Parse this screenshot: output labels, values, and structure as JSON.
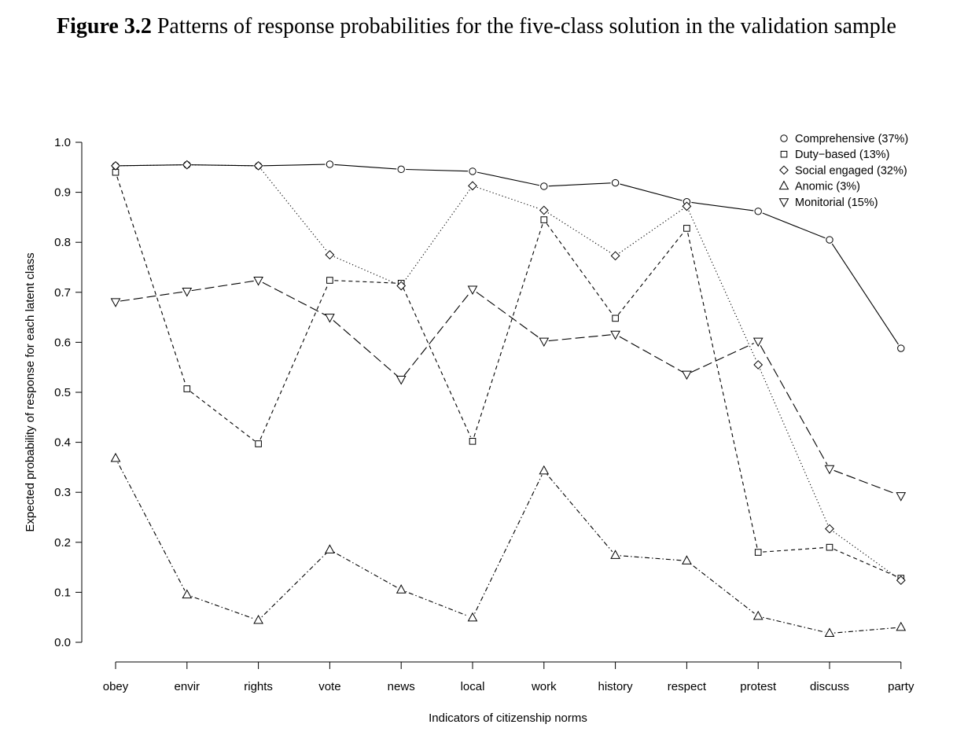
{
  "figure": {
    "number": "Figure 3.2",
    "caption": "Patterns of response probabilities for the five-class solution in the validation sample"
  },
  "chart_data": {
    "type": "line",
    "xlabel": "Indicators of citizenship norms",
    "ylabel": "Expected probability of response for each latent class",
    "ylim": [
      0.0,
      1.0
    ],
    "yticks": [
      "0.0",
      "0.1",
      "0.2",
      "0.3",
      "0.4",
      "0.5",
      "0.6",
      "0.7",
      "0.8",
      "0.9",
      "1.0"
    ],
    "categories": [
      "obey",
      "envir",
      "rights",
      "vote",
      "news",
      "local",
      "work",
      "history",
      "respect",
      "protest",
      "discuss",
      "party"
    ],
    "grid": false,
    "legend_position": "top-right",
    "series": [
      {
        "name": "Comprehensive (37%)",
        "marker": "circle",
        "dash": "solid",
        "values": [
          0.953,
          0.955,
          0.953,
          0.956,
          0.946,
          0.942,
          0.912,
          0.919,
          0.881,
          0.862,
          0.805,
          0.588
        ]
      },
      {
        "name": "Duty−based (13%)",
        "marker": "square",
        "dash": "dashed",
        "values": [
          0.94,
          0.507,
          0.397,
          0.724,
          0.718,
          0.402,
          0.845,
          0.648,
          0.828,
          0.18,
          0.19,
          0.128
        ]
      },
      {
        "name": "Social engaged (32%)",
        "marker": "diamond",
        "dash": "dotted",
        "values": [
          0.953,
          0.955,
          0.953,
          0.775,
          0.713,
          0.913,
          0.864,
          0.773,
          0.872,
          0.555,
          0.227,
          0.124
        ]
      },
      {
        "name": "Anomic (3%)",
        "marker": "triangle-up",
        "dash": "dashdot",
        "values": [
          0.368,
          0.095,
          0.044,
          0.185,
          0.105,
          0.049,
          0.343,
          0.174,
          0.163,
          0.052,
          0.018,
          0.03
        ]
      },
      {
        "name": "Monitorial (15%)",
        "marker": "triangle-down",
        "dash": "longdash",
        "values": [
          0.681,
          0.702,
          0.724,
          0.65,
          0.526,
          0.706,
          0.602,
          0.616,
          0.536,
          0.602,
          0.347,
          0.293
        ]
      }
    ]
  }
}
